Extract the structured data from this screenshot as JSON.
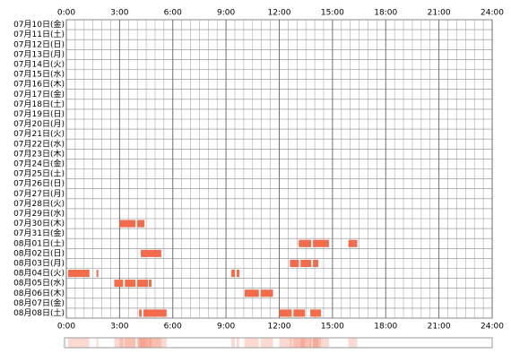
{
  "chart_data": {
    "type": "timeline",
    "xlim": [
      0,
      24
    ],
    "xticks": [
      {
        "value": 0,
        "label": "0:00"
      },
      {
        "value": 3,
        "label": "3:00"
      },
      {
        "value": 6,
        "label": "6:00"
      },
      {
        "value": 9,
        "label": "9:00"
      },
      {
        "value": 12,
        "label": "12:00"
      },
      {
        "value": 15,
        "label": "15:00"
      },
      {
        "value": 18,
        "label": "18:00"
      },
      {
        "value": 21,
        "label": "21:00"
      },
      {
        "value": 24,
        "label": "24:00"
      }
    ],
    "minor_grid_step": 0.5,
    "color": "#f26b4a",
    "categories": [
      "07月10日(金)",
      "07月11日(土)",
      "07月12日(日)",
      "07月13日(月)",
      "07月14日(火)",
      "07月15日(水)",
      "07月16日(木)",
      "07月17日(金)",
      "07月18日(土)",
      "07月19日(日)",
      "07月20日(月)",
      "07月21日(火)",
      "07月22日(水)",
      "07月23日(木)",
      "07月24日(金)",
      "07月25日(土)",
      "07月26日(日)",
      "07月27日(月)",
      "07月28日(火)",
      "07月29日(水)",
      "07月30日(木)",
      "07月31日(金)",
      "08月01日(土)",
      "08月02日(日)",
      "08月03日(月)",
      "08月04日(火)",
      "08月05日(水)",
      "08月06日(木)",
      "08月07日(金)",
      "08月08日(土)"
    ],
    "values": [
      [],
      [],
      [],
      [],
      [],
      [],
      [],
      [],
      [],
      [],
      [],
      [],
      [],
      [],
      [],
      [],
      [],
      [],
      [],
      [],
      [
        [
          3.0,
          3.9
        ],
        [
          4.0,
          4.4
        ]
      ],
      [],
      [
        [
          13.1,
          13.8
        ],
        [
          13.9,
          14.8
        ],
        [
          15.9,
          16.4
        ]
      ],
      [
        [
          4.2,
          5.35
        ]
      ],
      [
        [
          12.6,
          13.1
        ],
        [
          13.2,
          13.8
        ],
        [
          13.9,
          14.2
        ]
      ],
      [
        [
          0.1,
          1.3
        ],
        [
          1.7,
          1.8
        ],
        [
          9.3,
          9.5
        ],
        [
          9.6,
          9.75
        ]
      ],
      [
        [
          2.7,
          3.2
        ],
        [
          3.3,
          3.9
        ],
        [
          4.0,
          4.6
        ],
        [
          4.65,
          4.8
        ]
      ],
      [
        [
          10.05,
          10.85
        ],
        [
          10.95,
          11.65
        ]
      ],
      [],
      [
        [
          4.1,
          4.25
        ],
        [
          4.35,
          5.65
        ],
        [
          12.0,
          12.7
        ],
        [
          12.8,
          13.45
        ],
        [
          13.75,
          14.35
        ]
      ]
    ]
  }
}
